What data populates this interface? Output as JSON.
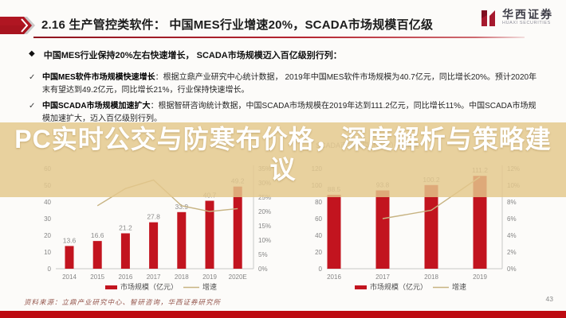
{
  "header": {
    "title": "2.16 生产管控类软件：  中国MES行业增速20%，SCADA市场规模百亿级",
    "logo_cn": "华西证券",
    "logo_en": "HUAXI SECURITIES"
  },
  "bullets": {
    "b1": "中国MES行业保持20%左右快速增长， SCADA市场规模迈入百亿级别行列：",
    "b2_lead": "中国MES软件市场规模快速增长",
    "b2_rest": "：根据立鼎产业研究中心统计数据， 2019年中国MES软件市场规模为40.7亿元，同比增长20%。预计2020年末有望达到49.2亿元，同比增长21%，行业保持快速增长。",
    "b3_lead": "中国SCADA市场规模加速扩大",
    "b3_rest": "：根据智研咨询统计数据，中国SCADA市场规模在2019年达到111.2亿元，同比增长11%。中国SCADA市场规模加速扩大，迈入百亿级别行列。"
  },
  "overlay": {
    "line1": "PC实时公交与防寒布价格，深度解析与策略建",
    "line2": "议"
  },
  "right_chart_faint_title": "SCADA市场规模（亿元）及增速",
  "chart_data": [
    {
      "type": "bar+line",
      "categories": [
        "2014",
        "2015",
        "2016",
        "2017",
        "2018",
        "2019",
        "2020E"
      ],
      "series": [
        {
          "name": "市场规模（亿元）",
          "type": "bar",
          "values": [
            13.6,
            16.6,
            21.2,
            27.8,
            33.9,
            40.7,
            49.2
          ]
        },
        {
          "name": "增速",
          "type": "line",
          "values": [
            null,
            22,
            28,
            31,
            22,
            20,
            21
          ],
          "unit": "%"
        }
      ],
      "ymax": 60,
      "yticks": [
        0,
        10,
        20,
        30,
        40,
        50,
        60
      ],
      "y2max": 35,
      "y2ticks": [
        0,
        5,
        10,
        15,
        20,
        25,
        30,
        35
      ],
      "legend": [
        "市场规模（亿元）",
        "增速"
      ],
      "legend_position": "bottom",
      "grid": false,
      "bar_color": "#c2141f",
      "line_color": "#c7b382"
    },
    {
      "type": "bar+line",
      "categories": [
        "2016",
        "2017",
        "2018",
        "2019"
      ],
      "series": [
        {
          "name": "市场规模（亿元）",
          "type": "bar",
          "values": [
            88.5,
            93.8,
            100.2,
            111.2
          ]
        },
        {
          "name": "增速",
          "type": "line",
          "values": [
            null,
            6,
            7,
            11
          ],
          "unit": "%"
        }
      ],
      "ymax": 120,
      "yticks": [
        0,
        20,
        40,
        60,
        80,
        100,
        120
      ],
      "y2max": 12,
      "y2ticks": [
        0,
        2,
        4,
        6,
        8,
        10,
        12
      ],
      "legend": [
        "市场规模（亿元）",
        "增速"
      ],
      "legend_position": "bottom",
      "grid": false,
      "bar_color": "#c2141f",
      "line_color": "#c7b382"
    }
  ],
  "footer": {
    "source": "资料来源：立鼎产业研究中心、智研咨询，华西证券研究所",
    "page": "43"
  }
}
